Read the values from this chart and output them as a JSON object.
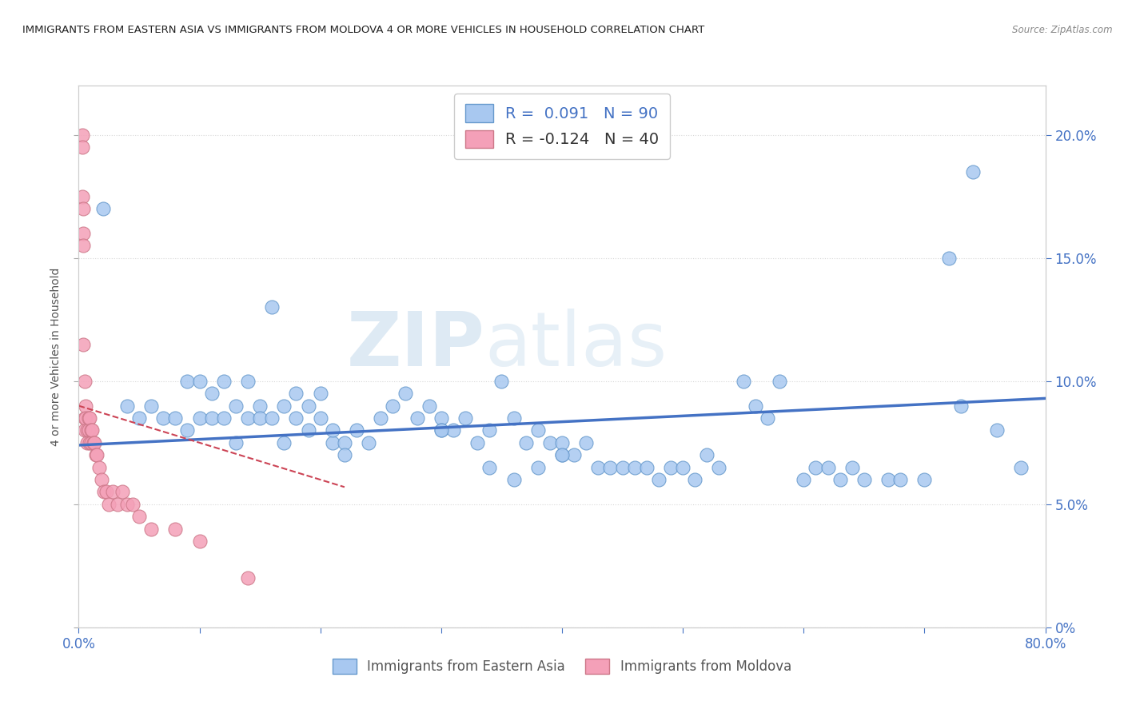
{
  "title": "IMMIGRANTS FROM EASTERN ASIA VS IMMIGRANTS FROM MOLDOVA 4 OR MORE VEHICLES IN HOUSEHOLD CORRELATION CHART",
  "source": "Source: ZipAtlas.com",
  "ylabel_label": "4 or more Vehicles in Household",
  "legend_label1": "Immigrants from Eastern Asia",
  "legend_label2": "Immigrants from Moldova",
  "watermark_zip": "ZIP",
  "watermark_atlas": "atlas",
  "blue_color": "#a8c8f0",
  "blue_edge_color": "#6699cc",
  "pink_color": "#f4a0b8",
  "pink_edge_color": "#cc7788",
  "blue_line_color": "#4472c4",
  "pink_line_color": "#cc4455",
  "background_color": "#ffffff",
  "grid_color": "#d8d8d8",
  "xlim": [
    0.0,
    0.8
  ],
  "ylim": [
    0.0,
    0.22
  ],
  "x_tick_positions": [
    0.0,
    0.1,
    0.2,
    0.3,
    0.4,
    0.5,
    0.6,
    0.7,
    0.8
  ],
  "y_tick_positions": [
    0.0,
    0.05,
    0.1,
    0.15,
    0.2
  ],
  "blue_scatter_x": [
    0.02,
    0.04,
    0.05,
    0.06,
    0.07,
    0.08,
    0.09,
    0.09,
    0.1,
    0.1,
    0.11,
    0.11,
    0.12,
    0.12,
    0.13,
    0.13,
    0.14,
    0.14,
    0.15,
    0.15,
    0.16,
    0.16,
    0.17,
    0.17,
    0.18,
    0.18,
    0.19,
    0.19,
    0.2,
    0.2,
    0.21,
    0.21,
    0.22,
    0.22,
    0.23,
    0.24,
    0.25,
    0.26,
    0.27,
    0.28,
    0.29,
    0.3,
    0.3,
    0.31,
    0.32,
    0.33,
    0.34,
    0.35,
    0.36,
    0.37,
    0.38,
    0.39,
    0.4,
    0.4,
    0.41,
    0.42,
    0.43,
    0.44,
    0.45,
    0.46,
    0.47,
    0.48,
    0.49,
    0.5,
    0.51,
    0.52,
    0.53,
    0.55,
    0.56,
    0.57,
    0.58,
    0.6,
    0.61,
    0.62,
    0.63,
    0.64,
    0.65,
    0.67,
    0.68,
    0.7,
    0.72,
    0.73,
    0.74,
    0.76,
    0.78,
    0.3,
    0.34,
    0.36,
    0.38,
    0.4
  ],
  "blue_scatter_y": [
    0.17,
    0.09,
    0.085,
    0.09,
    0.085,
    0.085,
    0.1,
    0.08,
    0.1,
    0.085,
    0.095,
    0.085,
    0.1,
    0.085,
    0.09,
    0.075,
    0.1,
    0.085,
    0.09,
    0.085,
    0.13,
    0.085,
    0.09,
    0.075,
    0.095,
    0.085,
    0.09,
    0.08,
    0.095,
    0.085,
    0.075,
    0.08,
    0.075,
    0.07,
    0.08,
    0.075,
    0.085,
    0.09,
    0.095,
    0.085,
    0.09,
    0.085,
    0.08,
    0.08,
    0.085,
    0.075,
    0.08,
    0.1,
    0.085,
    0.075,
    0.08,
    0.075,
    0.07,
    0.075,
    0.07,
    0.075,
    0.065,
    0.065,
    0.065,
    0.065,
    0.065,
    0.06,
    0.065,
    0.065,
    0.06,
    0.07,
    0.065,
    0.1,
    0.09,
    0.085,
    0.1,
    0.06,
    0.065,
    0.065,
    0.06,
    0.065,
    0.06,
    0.06,
    0.06,
    0.06,
    0.15,
    0.09,
    0.185,
    0.08,
    0.065,
    0.08,
    0.065,
    0.06,
    0.065,
    0.07
  ],
  "pink_scatter_x": [
    0.003,
    0.003,
    0.003,
    0.004,
    0.004,
    0.004,
    0.004,
    0.005,
    0.005,
    0.005,
    0.006,
    0.006,
    0.007,
    0.007,
    0.008,
    0.008,
    0.009,
    0.009,
    0.01,
    0.01,
    0.011,
    0.012,
    0.013,
    0.014,
    0.015,
    0.017,
    0.019,
    0.021,
    0.023,
    0.025,
    0.028,
    0.032,
    0.036,
    0.04,
    0.045,
    0.05,
    0.06,
    0.08,
    0.1,
    0.14
  ],
  "pink_scatter_y": [
    0.2,
    0.195,
    0.175,
    0.17,
    0.16,
    0.155,
    0.115,
    0.1,
    0.085,
    0.08,
    0.09,
    0.085,
    0.08,
    0.075,
    0.085,
    0.08,
    0.085,
    0.075,
    0.08,
    0.075,
    0.08,
    0.075,
    0.075,
    0.07,
    0.07,
    0.065,
    0.06,
    0.055,
    0.055,
    0.05,
    0.055,
    0.05,
    0.055,
    0.05,
    0.05,
    0.045,
    0.04,
    0.04,
    0.035,
    0.02
  ],
  "blue_trend_x": [
    0.0,
    0.8
  ],
  "blue_trend_y": [
    0.074,
    0.093
  ],
  "pink_trend_x": [
    0.0,
    0.22
  ],
  "pink_trend_y": [
    0.09,
    0.057
  ]
}
